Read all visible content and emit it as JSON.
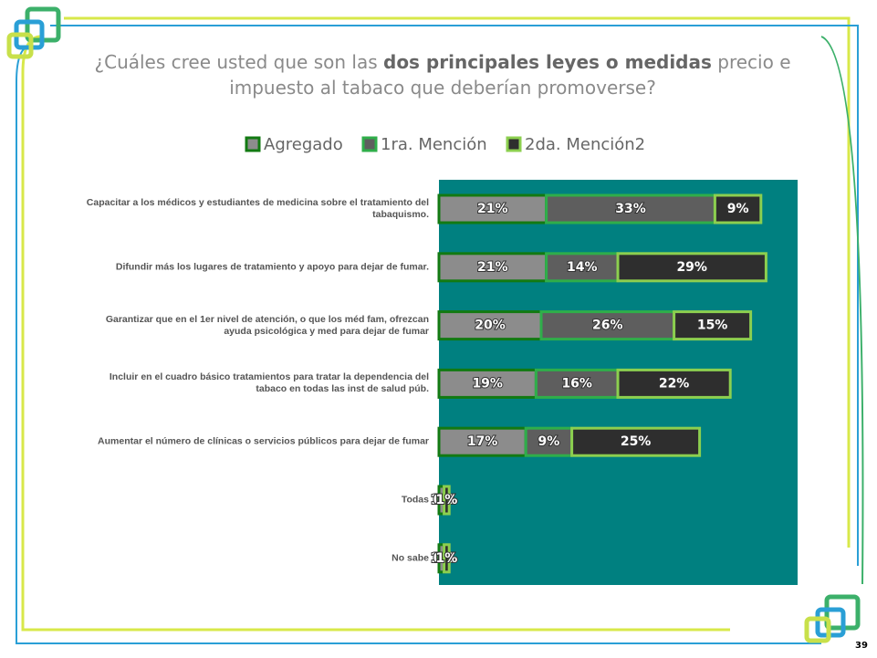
{
  "chart_data": {
    "type": "stacked-bar-horizontal",
    "title_parts": [
      "¿Cuáles cree usted que son las ",
      "dos principales leyes o medidas",
      " precio e impuesto al tabaco que deberían promoverse?"
    ],
    "categories": [
      "Capacitar a los médicos y estudiantes de medicina sobre el tratamiento del tabaquismo.",
      "Difundir más los lugares de tratamiento y apoyo para dejar de fumar.",
      "Garantizar que en el 1er nivel de atención, o que los méd fam, ofrezcan ayuda psicológica y med para dejar de fumar",
      "Incluir en el cuadro básico tratamientos para tratar la dependencia del tabaco en todas las inst de salud púb.",
      "Aumentar el número de clínicas o servicios públicos para dejar de fumar",
      "Todas",
      "No sabe"
    ],
    "series": [
      {
        "name": "Agregado",
        "color": "#8c8c8c",
        "border": "#127a12",
        "values": [
          21,
          21,
          20,
          19,
          17,
          1,
          1
        ],
        "value_labels": [
          "21%",
          "21%",
          "20%",
          "19%",
          "17%",
          "1%",
          "1%"
        ]
      },
      {
        "name": "1ra. Mención",
        "color": "#5e5e5e",
        "border": "#2fae4a",
        "values": [
          33,
          14,
          26,
          16,
          9,
          0,
          0
        ],
        "value_labels": [
          "33%",
          "14%",
          "26%",
          "16%",
          "9%",
          "0%",
          "0%"
        ]
      },
      {
        "name": "2da. Mención2",
        "color": "#2e2e2e",
        "border": "#8ccf4f",
        "values": [
          9,
          29,
          15,
          22,
          25,
          1,
          1
        ],
        "value_labels": [
          "9%",
          "29%",
          "15%",
          "22%",
          "25%",
          "1%",
          "1%"
        ]
      }
    ],
    "plot_background": "#008080",
    "page_number": "39"
  }
}
